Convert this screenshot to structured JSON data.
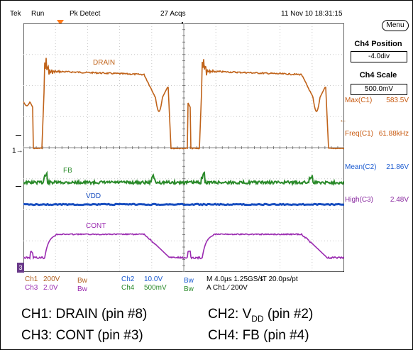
{
  "header": {
    "brand": "Tek",
    "run_state": "Run",
    "acq_mode": "Pk Detect",
    "acq_count": "27 Acqs",
    "datetime": "11 Nov 10 18:31:15",
    "menu_label": "Menu"
  },
  "panel": {
    "position_title": "Ch4 Position",
    "position_value": "-4.0div",
    "scale_title": "Ch4 Scale",
    "scale_value": "500.0mV",
    "measurements": [
      {
        "name": "Max(C1)",
        "value": "583.5V"
      },
      {
        "name": "Freq(C1)",
        "value": "61.88kHz"
      },
      {
        "name": "Mean(C2)",
        "value": "21.86V"
      },
      {
        "name": "High(C3)",
        "value": "2.48V"
      }
    ]
  },
  "traces": {
    "drain": "DRAIN",
    "fb": "FB",
    "vdd": "VDD",
    "cont": "CONT"
  },
  "markers": {
    "ground_ch1": "1",
    "ground_ch3": "3"
  },
  "status": {
    "ch1_label": "Ch1",
    "ch1_scale": "200V",
    "ch3_label": "Ch3",
    "ch3_scale": "2.0V",
    "bw": "Bw",
    "ch2_label": "Ch2",
    "ch2_scale": "10.0V",
    "ch4_label": "Ch4",
    "ch4_scale": "500mV",
    "timebase": "M 4.0µs 1.25GS/s",
    "interp": "IT 20.0ps/pt",
    "trigger": "A  Ch1  ∕  200V"
  },
  "caption": {
    "ch1": "CH1: DRAIN (pin #8)",
    "ch2_prefix": "CH2: V",
    "ch2_sub": "DD",
    "ch2_suffix": " (pin #2)",
    "ch3": "CH3: CONT (pin #3)",
    "ch4": "CH4: FB (pin #4)"
  },
  "colors": {
    "drain": "#c0631a",
    "fb": "#2a8a2a",
    "vdd": "#1a4fc0",
    "cont": "#9a2ab0"
  }
}
